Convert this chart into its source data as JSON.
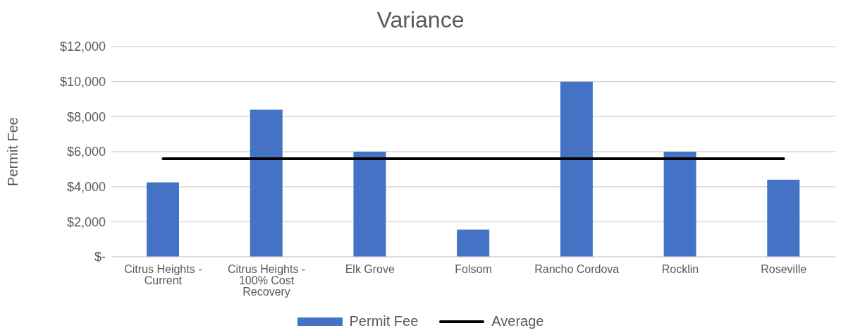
{
  "chart_data": {
    "type": "bar",
    "title": "Variance",
    "ylabel": "Permit Fee",
    "categories": [
      "Citrus Heights - Current",
      "Citrus Heights - 100% Cost Recovery",
      "Elk Grove",
      "Folsom",
      "Rancho Cordova",
      "Rocklin",
      "Roseville"
    ],
    "series": [
      {
        "name": "Permit Fee",
        "color": "#4472c4",
        "values": [
          4250,
          8400,
          6000,
          1550,
          10000,
          6000,
          4400
        ]
      },
      {
        "name": "Average",
        "type": "line",
        "color": "#000000",
        "values": [
          5600,
          5600,
          5600,
          5600,
          5600,
          5600,
          5600
        ]
      }
    ],
    "ylim": [
      0,
      12000
    ],
    "yticks": [
      {
        "value": 0,
        "label": "$-"
      },
      {
        "value": 2000,
        "label": "$2,000"
      },
      {
        "value": 4000,
        "label": "$4,000"
      },
      {
        "value": 6000,
        "label": "$6,000"
      },
      {
        "value": 8000,
        "label": "$8,000"
      },
      {
        "value": 10000,
        "label": "$10,000"
      },
      {
        "value": 12000,
        "label": "$12,000"
      }
    ],
    "grid": "y",
    "legend": "bottom",
    "marker": "none"
  }
}
